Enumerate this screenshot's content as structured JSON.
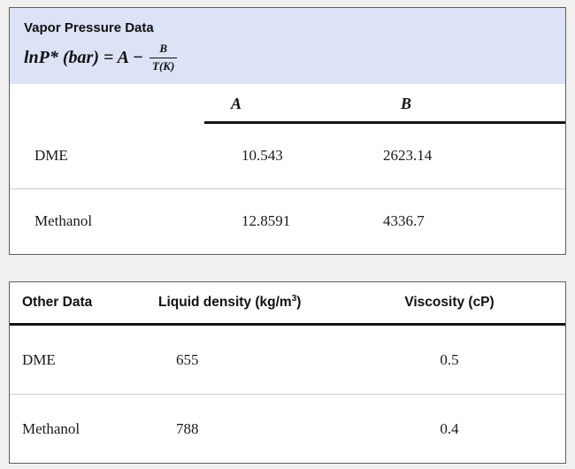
{
  "vapor_table": {
    "title": "Vapor Pressure Data",
    "formula": {
      "left": "lnP* (bar) = A −",
      "numerator": "B",
      "denominator": "T(K)"
    },
    "columns": {
      "a": "A",
      "b": "B"
    },
    "rows": [
      {
        "label": "DME",
        "a": "10.543",
        "b": "2623.14"
      },
      {
        "label": "Methanol",
        "a": "12.8591",
        "b": "4336.7"
      }
    ]
  },
  "other_table": {
    "title": "Other Data",
    "columns": {
      "density_main": "Liquid density (kg/m",
      "density_sup": "3",
      "density_end": ")",
      "viscosity": "Viscosity (cP)"
    },
    "rows": [
      {
        "label": "DME",
        "density": "655",
        "viscosity": "0.5"
      },
      {
        "label": "Methanol",
        "density": "788",
        "viscosity": "0.4"
      }
    ]
  },
  "colors": {
    "header_band": "#dce3f7",
    "rule": "#151515",
    "page_background": "#f1f0ee"
  }
}
